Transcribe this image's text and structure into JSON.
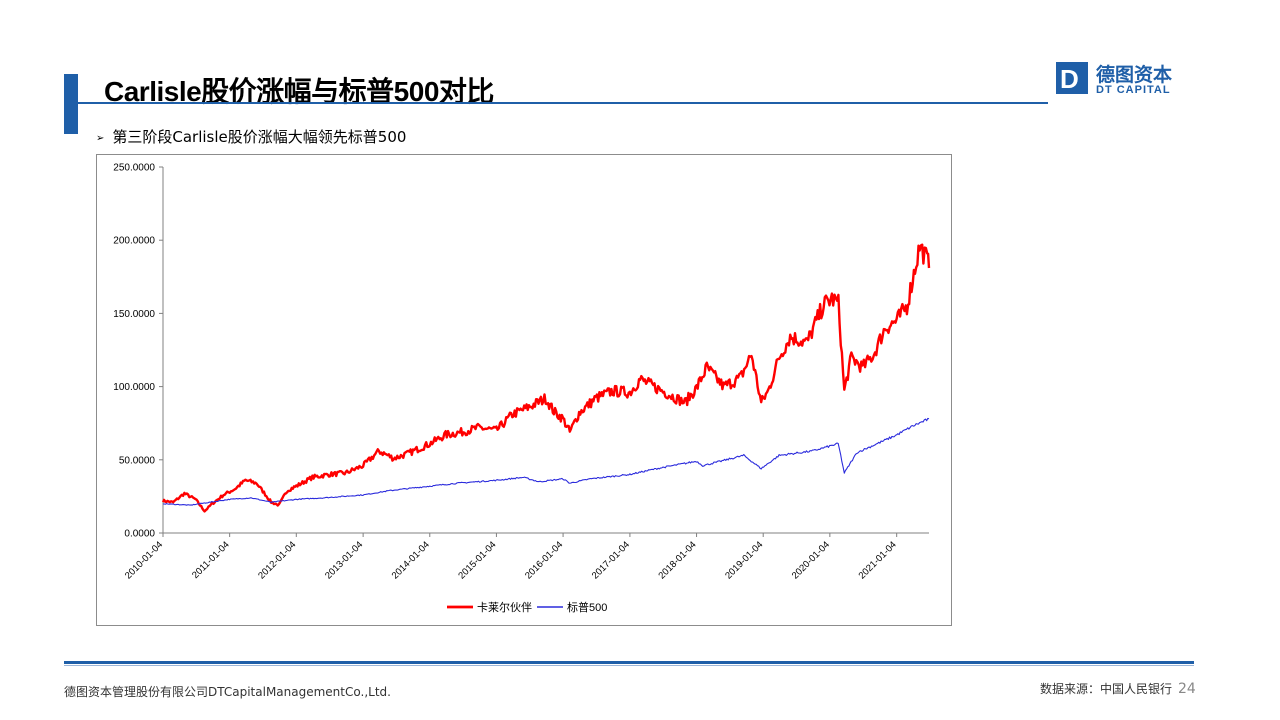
{
  "header": {
    "title": "Carlisle股价涨幅与标普500对比",
    "subtitle": "第三阶段Carlisle股价涨幅大幅领先标普500",
    "bullet": "➢"
  },
  "logo": {
    "mark": "D",
    "name_cn": "德图资本",
    "name_en": "DT CAPITAL"
  },
  "footer": {
    "company": "德图资本管理股份有限公司DTCapitalManagementCo.,Ltd.",
    "source": "数据来源：中国人民银行",
    "page": "24"
  },
  "colors": {
    "accent": "#1f5fa8",
    "series_carlisle": "#ff0000",
    "series_sp500": "#2b2bdc"
  },
  "chart_data": {
    "type": "line",
    "title": "",
    "xlabel": "",
    "ylabel": "",
    "ylim": [
      0,
      250
    ],
    "yticks": [
      0,
      50,
      100,
      150,
      200,
      250
    ],
    "ytick_labels": [
      "0.0000",
      "50.0000",
      "100.0000",
      "150.0000",
      "200.0000",
      "250.0000"
    ],
    "x_range": [
      "2010-01-04",
      "2021-06-30"
    ],
    "xtick_labels": [
      "2010-01-04",
      "2011-01-04",
      "2012-01-04",
      "2013-01-04",
      "2014-01-04",
      "2015-01-04",
      "2016-01-04",
      "2017-01-04",
      "2018-01-04",
      "2019-01-04",
      "2020-01-04",
      "2021-01-04"
    ],
    "grid": false,
    "legend_position": "bottom",
    "series": [
      {
        "name": "卡莱尔伙伴",
        "points": [
          [
            "2010-01-04",
            22
          ],
          [
            "2010-03-01",
            21
          ],
          [
            "2010-05-01",
            27
          ],
          [
            "2010-07-01",
            23
          ],
          [
            "2010-08-20",
            15
          ],
          [
            "2010-10-01",
            20
          ],
          [
            "2010-12-01",
            26
          ],
          [
            "2011-02-01",
            30
          ],
          [
            "2011-04-01",
            36
          ],
          [
            "2011-06-01",
            34
          ],
          [
            "2011-08-20",
            21
          ],
          [
            "2011-10-01",
            19
          ],
          [
            "2011-11-15",
            29
          ],
          [
            "2012-01-04",
            32
          ],
          [
            "2012-04-01",
            38
          ],
          [
            "2012-07-01",
            40
          ],
          [
            "2012-10-01",
            41
          ],
          [
            "2013-01-04",
            46
          ],
          [
            "2013-04-01",
            56
          ],
          [
            "2013-06-20",
            51
          ],
          [
            "2013-09-01",
            54
          ],
          [
            "2014-01-04",
            61
          ],
          [
            "2014-04-01",
            67
          ],
          [
            "2014-07-01",
            69
          ],
          [
            "2014-10-01",
            72
          ],
          [
            "2015-01-04",
            70
          ],
          [
            "2015-04-01",
            81
          ],
          [
            "2015-07-01",
            86
          ],
          [
            "2015-10-01",
            92
          ],
          [
            "2015-11-15",
            83
          ],
          [
            "2016-01-04",
            78
          ],
          [
            "2016-02-10",
            69
          ],
          [
            "2016-04-01",
            82
          ],
          [
            "2016-07-01",
            92
          ],
          [
            "2016-10-01",
            97
          ],
          [
            "2017-01-04",
            96
          ],
          [
            "2017-03-01",
            105
          ],
          [
            "2017-06-01",
            99
          ],
          [
            "2017-09-01",
            93
          ],
          [
            "2017-11-01",
            89
          ],
          [
            "2018-01-04",
            99
          ],
          [
            "2018-03-01",
            113
          ],
          [
            "2018-06-01",
            100
          ],
          [
            "2018-09-01",
            106
          ],
          [
            "2018-11-01",
            122
          ],
          [
            "2018-12-24",
            89
          ],
          [
            "2019-02-01",
            97
          ],
          [
            "2019-04-01",
            120
          ],
          [
            "2019-06-01",
            134
          ],
          [
            "2019-09-01",
            130
          ],
          [
            "2019-12-01",
            156
          ],
          [
            "2020-01-15",
            160
          ],
          [
            "2020-02-20",
            157
          ],
          [
            "2020-03-23",
            97
          ],
          [
            "2020-05-01",
            120
          ],
          [
            "2020-07-01",
            113
          ],
          [
            "2020-09-01",
            122
          ],
          [
            "2020-11-01",
            140
          ],
          [
            "2021-01-04",
            145
          ],
          [
            "2021-03-01",
            155
          ],
          [
            "2021-05-10",
            196
          ],
          [
            "2021-06-20",
            187
          ],
          [
            "2021-06-30",
            181
          ]
        ]
      },
      {
        "name": "标普500",
        "points": [
          [
            "2010-01-04",
            20
          ],
          [
            "2010-06-01",
            19
          ],
          [
            "2011-01-04",
            23
          ],
          [
            "2011-05-01",
            24
          ],
          [
            "2011-08-20",
            21
          ],
          [
            "2012-01-04",
            23
          ],
          [
            "2012-06-01",
            24
          ],
          [
            "2013-01-04",
            26
          ],
          [
            "2013-06-01",
            29
          ],
          [
            "2014-01-04",
            32
          ],
          [
            "2014-06-01",
            34
          ],
          [
            "2015-01-04",
            36
          ],
          [
            "2015-06-01",
            38
          ],
          [
            "2015-08-25",
            35
          ],
          [
            "2016-01-04",
            37
          ],
          [
            "2016-02-10",
            34
          ],
          [
            "2016-06-01",
            37
          ],
          [
            "2017-01-04",
            40
          ],
          [
            "2017-06-01",
            44
          ],
          [
            "2018-01-04",
            49
          ],
          [
            "2018-02-08",
            46
          ],
          [
            "2018-09-20",
            53
          ],
          [
            "2018-12-24",
            44
          ],
          [
            "2019-04-01",
            53
          ],
          [
            "2019-10-01",
            56
          ],
          [
            "2020-02-19",
            61
          ],
          [
            "2020-03-23",
            41
          ],
          [
            "2020-06-01",
            55
          ],
          [
            "2020-09-01",
            60
          ],
          [
            "2021-01-04",
            67
          ],
          [
            "2021-04-01",
            73
          ],
          [
            "2021-06-30",
            78
          ]
        ]
      }
    ]
  }
}
